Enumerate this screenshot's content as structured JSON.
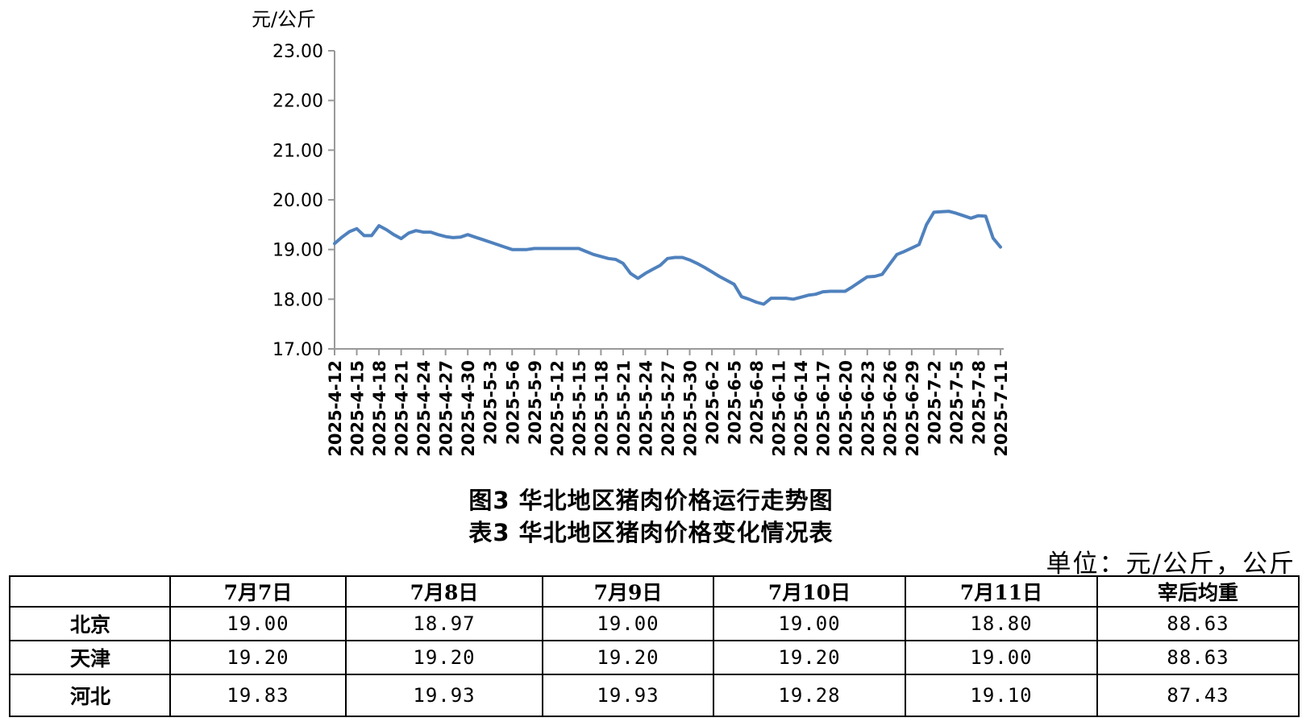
{
  "chart_data": {
    "type": "line",
    "ylabel": "元/公斤",
    "ylim": [
      17,
      23
    ],
    "yticks": [
      17,
      18,
      19,
      20,
      21,
      22,
      23
    ],
    "ytick_labels": [
      "17.00",
      "18.00",
      "19.00",
      "20.00",
      "21.00",
      "22.00",
      "23.00"
    ],
    "x_start": "2025-4-12",
    "x_end": "2025-7-11",
    "xtick_labels": [
      "2025-4-12",
      "2025-4-15",
      "2025-4-18",
      "2025-4-21",
      "2025-4-24",
      "2025-4-27",
      "2025-4-30",
      "2025-5-3",
      "2025-5-6",
      "2025-5-9",
      "2025-5-12",
      "2025-5-15",
      "2025-5-18",
      "2025-5-21",
      "2025-5-24",
      "2025-5-27",
      "2025-5-30",
      "2025-6-2",
      "2025-6-5",
      "2025-6-8",
      "2025-6-11",
      "2025-6-14",
      "2025-6-17",
      "2025-6-20",
      "2025-6-23",
      "2025-6-26",
      "2025-6-29",
      "2025-7-2",
      "2025-7-5",
      "2025-7-8",
      "2025-7-11"
    ],
    "line_color": "#4f81bd",
    "grid": false,
    "series": [
      {
        "x": [
          "2025-4-12",
          "2025-4-13",
          "2025-4-14",
          "2025-4-15",
          "2025-4-16",
          "2025-4-17",
          "2025-4-18",
          "2025-4-19",
          "2025-4-20",
          "2025-4-21",
          "2025-4-22",
          "2025-4-23",
          "2025-4-24",
          "2025-4-25",
          "2025-4-26",
          "2025-4-27",
          "2025-4-28",
          "2025-4-29",
          "2025-4-30",
          "2025-5-1",
          "2025-5-2",
          "2025-5-3",
          "2025-5-4",
          "2025-5-5",
          "2025-5-6",
          "2025-5-7",
          "2025-5-8",
          "2025-5-9",
          "2025-5-10",
          "2025-5-11",
          "2025-5-12",
          "2025-5-13",
          "2025-5-14",
          "2025-5-15",
          "2025-5-16",
          "2025-5-17",
          "2025-5-18",
          "2025-5-19",
          "2025-5-20",
          "2025-5-21",
          "2025-5-22",
          "2025-5-23",
          "2025-5-24",
          "2025-5-25",
          "2025-5-26",
          "2025-5-27",
          "2025-5-28",
          "2025-5-29",
          "2025-5-30",
          "2025-5-31",
          "2025-6-1",
          "2025-6-2",
          "2025-6-3",
          "2025-6-4",
          "2025-6-5",
          "2025-6-6",
          "2025-6-7",
          "2025-6-8",
          "2025-6-9",
          "2025-6-10",
          "2025-6-11",
          "2025-6-12",
          "2025-6-13",
          "2025-6-14",
          "2025-6-15",
          "2025-6-16",
          "2025-6-17",
          "2025-6-18",
          "2025-6-19",
          "2025-6-20",
          "2025-6-21",
          "2025-6-22",
          "2025-6-23",
          "2025-6-24",
          "2025-6-25",
          "2025-6-26",
          "2025-6-27",
          "2025-6-28",
          "2025-6-29",
          "2025-6-30",
          "2025-7-1",
          "2025-7-2",
          "2025-7-3",
          "2025-7-4",
          "2025-7-5",
          "2025-7-6",
          "2025-7-7",
          "2025-7-8",
          "2025-7-9",
          "2025-7-10",
          "2025-7-11"
        ],
        "values": [
          19.12,
          19.25,
          19.36,
          19.42,
          19.28,
          19.28,
          19.48,
          19.4,
          19.3,
          19.22,
          19.33,
          19.38,
          19.35,
          19.35,
          19.3,
          19.26,
          19.24,
          19.25,
          19.3,
          19.25,
          19.2,
          19.15,
          19.1,
          19.05,
          19.0,
          19.0,
          19.0,
          19.02,
          19.02,
          19.02,
          19.02,
          19.02,
          19.02,
          19.02,
          18.96,
          18.9,
          18.86,
          18.82,
          18.8,
          18.72,
          18.52,
          18.42,
          18.52,
          18.6,
          18.68,
          18.82,
          18.84,
          18.84,
          18.79,
          18.72,
          18.64,
          18.55,
          18.46,
          18.38,
          18.3,
          18.05,
          18.0,
          17.94,
          17.9,
          18.02,
          18.02,
          18.02,
          18.0,
          18.04,
          18.08,
          18.1,
          18.15,
          18.16,
          18.16,
          18.16,
          18.25,
          18.35,
          18.45,
          18.46,
          18.5,
          18.7,
          18.9,
          18.96,
          19.03,
          19.1,
          19.5,
          19.75,
          19.76,
          19.77,
          19.73,
          19.68,
          19.63,
          19.68,
          19.67,
          19.23,
          19.05
        ]
      }
    ],
    "caption": "图3 华北地区猪肉价格运行走势图"
  },
  "table": {
    "title": "表3 华北地区猪肉价格变化情况表",
    "unit": "单位：元/公斤，公斤",
    "headers": [
      "",
      "7月7日",
      "7月8日",
      "7月9日",
      "7月10日",
      "7月11日",
      "宰后均重"
    ],
    "rows": [
      {
        "region": "北京",
        "values": [
          "19.00",
          "18.97",
          "19.00",
          "19.00",
          "18.80",
          "88.63"
        ]
      },
      {
        "region": "天津",
        "values": [
          "19.20",
          "19.20",
          "19.20",
          "19.20",
          "19.00",
          "88.63"
        ]
      },
      {
        "region": "河北",
        "values": [
          "19.83",
          "19.93",
          "19.93",
          "19.28",
          "19.10",
          "87.43"
        ]
      }
    ]
  }
}
